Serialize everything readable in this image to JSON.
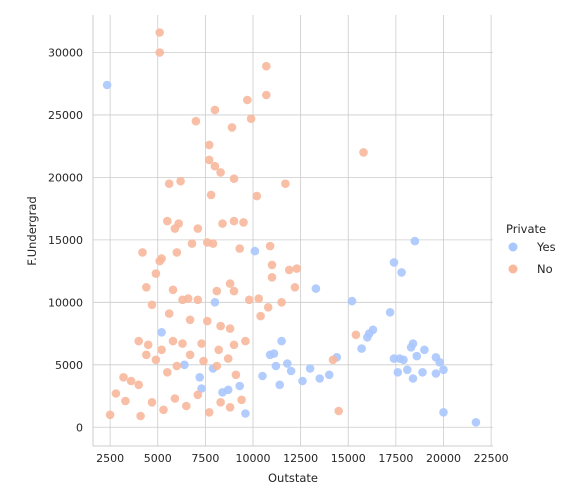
{
  "chart_data": {
    "type": "scatter",
    "title": "",
    "xlabel": "Outstate",
    "ylabel": "F.Undergrad",
    "xlim": [
      1600,
      22600
    ],
    "ylim": [
      -1500,
      33000
    ],
    "xticks": [
      2500,
      5000,
      7500,
      10000,
      12500,
      15000,
      17500,
      20000,
      22500
    ],
    "yticks": [
      0,
      5000,
      10000,
      15000,
      20000,
      25000,
      30000
    ],
    "grid": true,
    "legend": {
      "title": "Private",
      "placement": "right"
    },
    "series": [
      {
        "name": "Yes",
        "color": "#aac7fd",
        "points": [
          [
            2340,
            27400
          ],
          [
            10100,
            14100
          ],
          [
            18500,
            14900
          ],
          [
            17400,
            13200
          ],
          [
            17800,
            12400
          ],
          [
            13300,
            11100
          ],
          [
            15200,
            10100
          ],
          [
            17200,
            9200
          ],
          [
            16300,
            7800
          ],
          [
            16100,
            7500
          ],
          [
            16000,
            7200
          ],
          [
            15700,
            6300
          ],
          [
            17400,
            5500
          ],
          [
            17700,
            5500
          ],
          [
            17900,
            5400
          ],
          [
            17600,
            4400
          ],
          [
            18100,
            4600
          ],
          [
            18300,
            6400
          ],
          [
            18400,
            6700
          ],
          [
            19000,
            6200
          ],
          [
            18600,
            5700
          ],
          [
            19600,
            5600
          ],
          [
            19800,
            5200
          ],
          [
            20000,
            4600
          ],
          [
            19600,
            4300
          ],
          [
            18900,
            4400
          ],
          [
            18400,
            3900
          ],
          [
            20000,
            1200
          ],
          [
            21700,
            400
          ],
          [
            8000,
            10000
          ],
          [
            11500,
            6900
          ],
          [
            11100,
            5900
          ],
          [
            10900,
            5800
          ],
          [
            12000,
            4500
          ],
          [
            13000,
            4700
          ],
          [
            13500,
            3900
          ],
          [
            14400,
            5600
          ],
          [
            14000,
            4200
          ],
          [
            12600,
            3700
          ],
          [
            11400,
            3400
          ],
          [
            10500,
            4100
          ],
          [
            9300,
            3300
          ],
          [
            8400,
            2800
          ],
          [
            7300,
            3100
          ],
          [
            5200,
            7600
          ],
          [
            6400,
            5000
          ],
          [
            7200,
            4000
          ],
          [
            8700,
            3000
          ],
          [
            7900,
            4700
          ],
          [
            9600,
            1100
          ],
          [
            11200,
            4900
          ],
          [
            11800,
            5100
          ]
        ]
      },
      {
        "name": "No",
        "color": "#f7b89c",
        "points": [
          [
            5100,
            31600
          ],
          [
            5100,
            30000
          ],
          [
            10700,
            28900
          ],
          [
            10700,
            26600
          ],
          [
            9700,
            26200
          ],
          [
            8000,
            25400
          ],
          [
            7000,
            24500
          ],
          [
            9900,
            24700
          ],
          [
            8900,
            24000
          ],
          [
            7700,
            22600
          ],
          [
            7700,
            21400
          ],
          [
            8000,
            20900
          ],
          [
            8300,
            20400
          ],
          [
            9000,
            19900
          ],
          [
            6200,
            19700
          ],
          [
            5600,
            19500
          ],
          [
            7800,
            18600
          ],
          [
            11700,
            19500
          ],
          [
            10200,
            18500
          ],
          [
            15800,
            22000
          ],
          [
            5500,
            16500
          ],
          [
            6100,
            16300
          ],
          [
            5900,
            15900
          ],
          [
            7100,
            15900
          ],
          [
            8400,
            16300
          ],
          [
            9000,
            16500
          ],
          [
            9500,
            16400
          ],
          [
            4200,
            14000
          ],
          [
            5200,
            13500
          ],
          [
            5100,
            13300
          ],
          [
            6000,
            14000
          ],
          [
            6800,
            14700
          ],
          [
            7600,
            14800
          ],
          [
            7900,
            14700
          ],
          [
            9300,
            14300
          ],
          [
            10900,
            14500
          ],
          [
            11000,
            13000
          ],
          [
            11900,
            12600
          ],
          [
            12300,
            12700
          ],
          [
            11000,
            12000
          ],
          [
            12200,
            11200
          ],
          [
            4900,
            12300
          ],
          [
            4400,
            11200
          ],
          [
            5800,
            11000
          ],
          [
            6300,
            10200
          ],
          [
            6600,
            10300
          ],
          [
            7100,
            10200
          ],
          [
            8100,
            10900
          ],
          [
            8800,
            11500
          ],
          [
            9000,
            10900
          ],
          [
            9800,
            10200
          ],
          [
            10300,
            10300
          ],
          [
            10400,
            8900
          ],
          [
            10800,
            9600
          ],
          [
            11500,
            10000
          ],
          [
            4700,
            9800
          ],
          [
            5600,
            9100
          ],
          [
            6700,
            8600
          ],
          [
            7600,
            8500
          ],
          [
            8300,
            8100
          ],
          [
            8800,
            7900
          ],
          [
            4000,
            6900
          ],
          [
            4500,
            6600
          ],
          [
            5200,
            6200
          ],
          [
            5800,
            6900
          ],
          [
            6300,
            6700
          ],
          [
            7300,
            6700
          ],
          [
            8200,
            6200
          ],
          [
            9000,
            6600
          ],
          [
            9600,
            6900
          ],
          [
            14200,
            5400
          ],
          [
            15400,
            7400
          ],
          [
            3200,
            4000
          ],
          [
            3600,
            3700
          ],
          [
            4000,
            3400
          ],
          [
            4400,
            5800
          ],
          [
            4900,
            5400
          ],
          [
            5500,
            4400
          ],
          [
            6000,
            4900
          ],
          [
            6700,
            5800
          ],
          [
            7400,
            5300
          ],
          [
            8100,
            4900
          ],
          [
            8700,
            5500
          ],
          [
            9100,
            4200
          ],
          [
            2500,
            1000
          ],
          [
            2800,
            2700
          ],
          [
            3300,
            2100
          ],
          [
            4100,
            900
          ],
          [
            4700,
            2000
          ],
          [
            5300,
            1400
          ],
          [
            5900,
            2300
          ],
          [
            6500,
            1700
          ],
          [
            7100,
            2600
          ],
          [
            7700,
            1200
          ],
          [
            8300,
            2000
          ],
          [
            8800,
            1600
          ],
          [
            9400,
            2200
          ],
          [
            14500,
            1300
          ]
        ]
      }
    ]
  }
}
